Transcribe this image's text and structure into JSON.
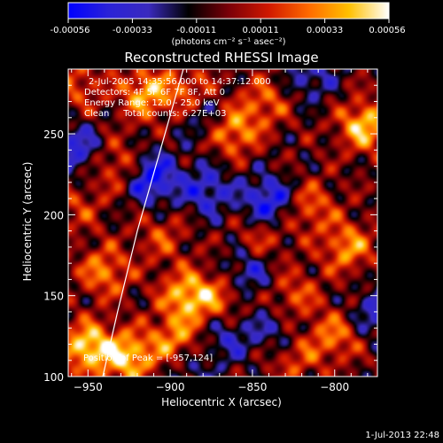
{
  "colorbar": {
    "tick_labels": [
      "-0.00056",
      "-0.00033",
      "-0.00011",
      "0.00011",
      "0.00033",
      "0.00056"
    ],
    "unit_label": "(photons cm⁻² s⁻¹ asec⁻²)",
    "stops": [
      "#0000ff",
      "#2a22d8",
      "#3a2abe",
      "#000000",
      "#7a0008",
      "#d01800",
      "#ff6a00",
      "#ffc000",
      "#ffffff"
    ],
    "range": [
      -0.00056,
      0.00056
    ]
  },
  "chart_data": {
    "type": "heatmap",
    "title": "Reconstructed RHESSI Image",
    "xlabel": "Heliocentric X (arcsec)",
    "ylabel": "Heliocentric Y (arcsec)",
    "xlim": [
      -962,
      -774
    ],
    "ylim": [
      100,
      290
    ],
    "x_ticks": [
      -950,
      -900,
      -850,
      -800
    ],
    "x_tick_labels": [
      "−950",
      "−900",
      "−850",
      "−800"
    ],
    "y_ticks": [
      100,
      150,
      200,
      250
    ],
    "y_tick_labels": [
      "100",
      "150",
      "200",
      "250"
    ],
    "annotations": [
      "2-Jul-2005 14:35:56.000 to 14:37:12.000",
      "Detectors: 4F 5F 6F 7F 8F, Att 0",
      "Energy Range: 12.0 - 25.0 keV",
      "Clean     Total counts: 6.27E+03"
    ],
    "peak_label": "Position of Peak = [-957,124]",
    "peak": [
      -957,
      124
    ],
    "limb_curve": [
      [
        -941,
        100
      ],
      [
        -932,
        140
      ],
      [
        -920,
        190
      ],
      [
        -906,
        240
      ],
      [
        -892,
        290
      ]
    ],
    "blobs": [
      {
        "x": -950,
        "y": 118,
        "v": 1.0
      },
      {
        "x": -925,
        "y": 112,
        "v": 0.9
      },
      {
        "x": -890,
        "y": 150,
        "v": 0.85
      },
      {
        "x": -897,
        "y": 122,
        "v": 0.7
      },
      {
        "x": -940,
        "y": 165,
        "v": 0.65
      },
      {
        "x": -870,
        "y": 148,
        "v": 0.5
      },
      {
        "x": -915,
        "y": 275,
        "v": 0.8
      },
      {
        "x": -888,
        "y": 275,
        "v": 0.6
      },
      {
        "x": -930,
        "y": 230,
        "v": 0.55
      },
      {
        "x": -862,
        "y": 252,
        "v": 0.75
      },
      {
        "x": -842,
        "y": 270,
        "v": 0.5
      },
      {
        "x": -782,
        "y": 255,
        "v": 0.9
      },
      {
        "x": -792,
        "y": 180,
        "v": 0.7
      },
      {
        "x": -815,
        "y": 205,
        "v": 0.55
      },
      {
        "x": -800,
        "y": 125,
        "v": 0.6
      },
      {
        "x": -825,
        "y": 112,
        "v": 0.45
      },
      {
        "x": -825,
        "y": 150,
        "v": 0.5
      },
      {
        "x": -845,
        "y": 185,
        "v": 0.45
      },
      {
        "x": -905,
        "y": 186,
        "v": 0.4
      },
      {
        "x": -955,
        "y": 280,
        "v": 0.45
      },
      {
        "x": -956,
        "y": 205,
        "v": 0.35
      },
      {
        "x": -912,
        "y": 223,
        "v": -0.9
      },
      {
        "x": -878,
        "y": 215,
        "v": -0.6
      },
      {
        "x": -840,
        "y": 208,
        "v": -0.8
      },
      {
        "x": -852,
        "y": 165,
        "v": -0.55
      },
      {
        "x": -958,
        "y": 240,
        "v": -0.6
      },
      {
        "x": -880,
        "y": 262,
        "v": -0.5
      },
      {
        "x": -865,
        "y": 125,
        "v": -0.45
      },
      {
        "x": -775,
        "y": 140,
        "v": -0.5
      },
      {
        "x": -815,
        "y": 285,
        "v": -0.45
      },
      {
        "x": -835,
        "y": 128,
        "v": -0.4
      },
      {
        "x": -890,
        "y": 105,
        "v": -0.35
      }
    ]
  },
  "footer": {
    "timestamp": "1-Jul-2013 22:48"
  }
}
